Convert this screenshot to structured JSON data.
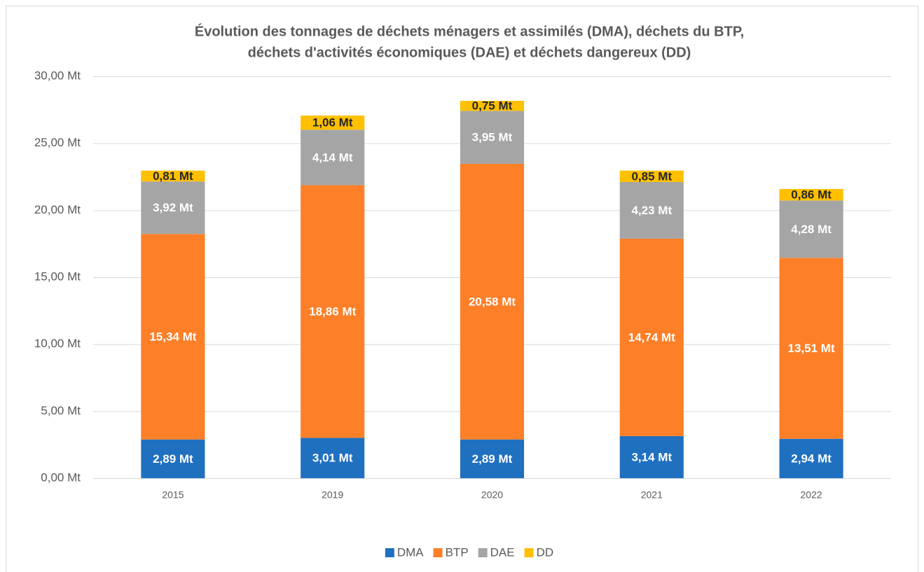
{
  "chart_data": {
    "type": "stacked_bar",
    "title": [
      "Évolution des tonnages de déchets ménagers et assimilés (DMA), déchets du BTP,",
      "déchets d'activités économiques (DAE) et déchets dangereux (DD)"
    ],
    "categories": [
      "2015",
      "2019",
      "2020",
      "2021",
      "2022"
    ],
    "series": [
      {
        "name": "DMA",
        "color": "#2070c0",
        "label_color": "#ffffff",
        "values": [
          2.89,
          3.01,
          2.89,
          3.14,
          2.94
        ],
        "value_labels": [
          "2,89 Mt",
          "3,01 Mt",
          "2,89 Mt",
          "3,14 Mt",
          "2,94 Mt"
        ]
      },
      {
        "name": "BTP",
        "color": "#fd7f28",
        "label_color": "#ffffff",
        "values": [
          15.34,
          18.86,
          20.58,
          14.74,
          13.51
        ],
        "value_labels": [
          "15,34 Mt",
          "18,86 Mt",
          "20,58 Mt",
          "14,74 Mt",
          "13,51 Mt"
        ]
      },
      {
        "name": "DAE",
        "color": "#a5a5a5",
        "label_color": "#ffffff",
        "values": [
          3.92,
          4.14,
          3.95,
          4.23,
          4.28
        ],
        "value_labels": [
          "3,92 Mt",
          "4,14 Mt",
          "3,95 Mt",
          "4,23 Mt",
          "4,28 Mt"
        ]
      },
      {
        "name": "DD",
        "color": "#ffc000",
        "label_color": "#262626",
        "values": [
          0.81,
          1.06,
          0.75,
          0.85,
          0.86
        ],
        "value_labels": [
          "0,81 Mt",
          "1,06 Mt",
          "0,75 Mt",
          "0,85 Mt",
          "0,86 Mt"
        ]
      }
    ],
    "ylim": [
      0,
      30
    ],
    "yticks": [
      {
        "value": 0,
        "label": "0,00 Mt"
      },
      {
        "value": 5,
        "label": "5,00 Mt"
      },
      {
        "value": 10,
        "label": "10,00 Mt"
      },
      {
        "value": 15,
        "label": "15,00 Mt"
      },
      {
        "value": 20,
        "label": "20,00 Mt"
      },
      {
        "value": 25,
        "label": "25,00 Mt"
      },
      {
        "value": 30,
        "label": "30,00 Mt"
      }
    ],
    "grid": true,
    "legend": "bottom"
  }
}
